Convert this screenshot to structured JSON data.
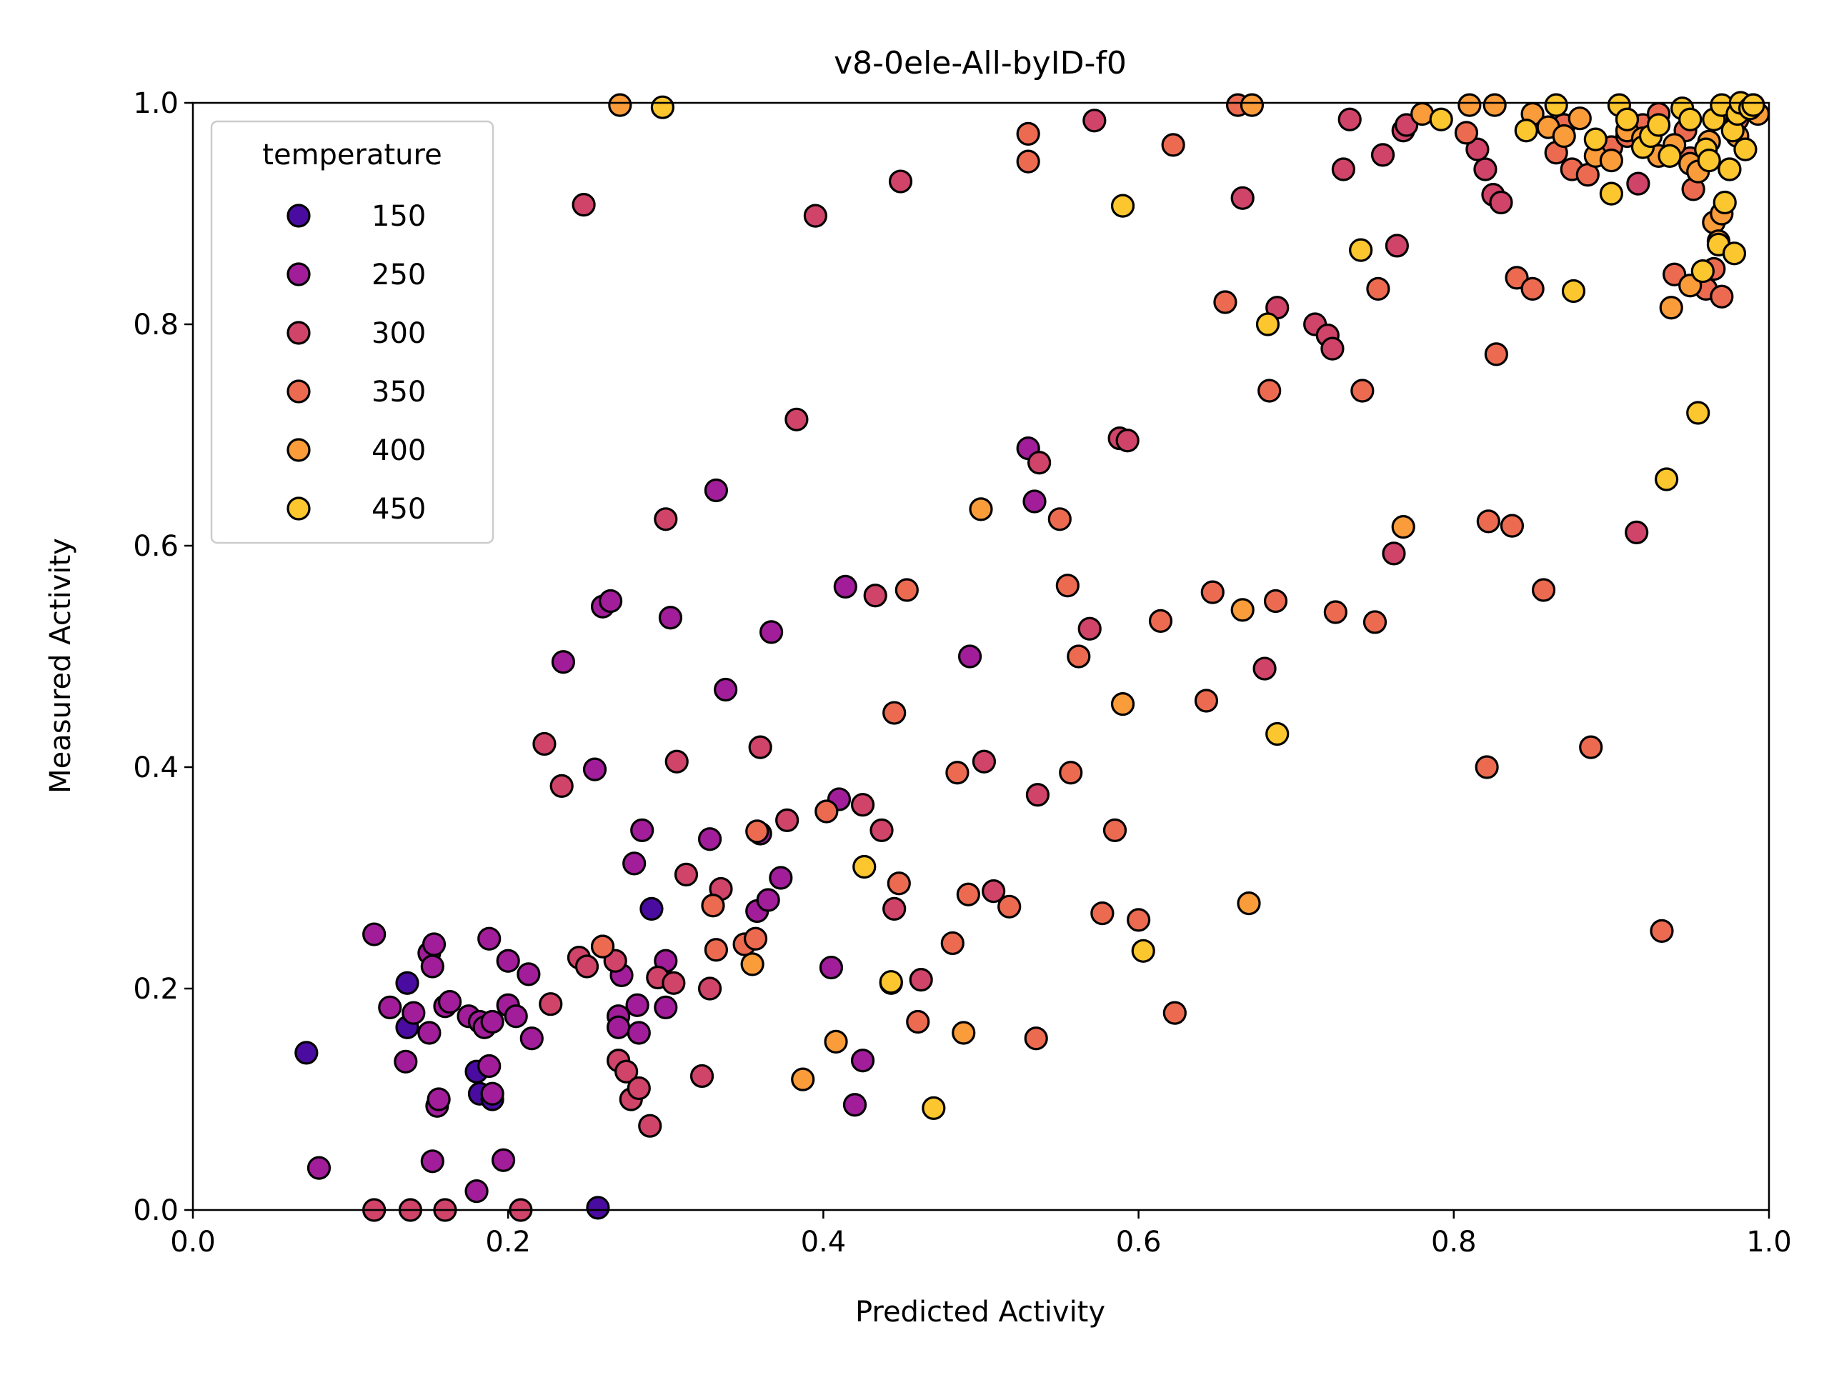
{
  "chart_data": {
    "type": "scatter",
    "title": "v8-0ele-All-byID-f0",
    "xlabel": "Predicted Activity",
    "ylabel": "Measured Activity",
    "xlim": [
      0.0,
      1.0
    ],
    "ylim": [
      0.0,
      1.0
    ],
    "xticks": [
      "0.0",
      "0.2",
      "0.4",
      "0.6",
      "0.8",
      "1.0"
    ],
    "yticks": [
      "0.0",
      "0.2",
      "0.4",
      "0.6",
      "0.8",
      "1.0"
    ],
    "grid": false,
    "legend": {
      "title": "temperature",
      "placement": "top-left",
      "entries": [
        {
          "label": "150",
          "color": "#4a0ca0"
        },
        {
          "label": "250",
          "color": "#a21d9a"
        },
        {
          "label": "300",
          "color": "#cf4468"
        },
        {
          "label": "350",
          "color": "#ec6b50"
        },
        {
          "label": "400",
          "color": "#fb9c3a"
        },
        {
          "label": "450",
          "color": "#fcc62e"
        }
      ]
    },
    "series": [
      {
        "name": "150",
        "color": "#4a0ca0",
        "points": [
          [
            0.072,
            0.142
          ],
          [
            0.136,
            0.205
          ],
          [
            0.136,
            0.165
          ],
          [
            0.18,
            0.125
          ],
          [
            0.182,
            0.105
          ],
          [
            0.19,
            0.1
          ],
          [
            0.291,
            0.272
          ],
          [
            0.257,
            0.002
          ]
        ]
      },
      {
        "name": "250",
        "color": "#a21d9a",
        "points": [
          [
            0.08,
            0.038
          ],
          [
            0.115,
            0.249
          ],
          [
            0.125,
            0.183
          ],
          [
            0.135,
            0.134
          ],
          [
            0.14,
            0.178
          ],
          [
            0.15,
            0.232
          ],
          [
            0.152,
            0.22
          ],
          [
            0.153,
            0.24
          ],
          [
            0.15,
            0.16
          ],
          [
            0.155,
            0.094
          ],
          [
            0.156,
            0.1
          ],
          [
            0.16,
            0.184
          ],
          [
            0.163,
            0.188
          ],
          [
            0.175,
            0.175
          ],
          [
            0.182,
            0.17
          ],
          [
            0.185,
            0.165
          ],
          [
            0.188,
            0.13
          ],
          [
            0.188,
            0.245
          ],
          [
            0.19,
            0.17
          ],
          [
            0.19,
            0.105
          ],
          [
            0.197,
            0.045
          ],
          [
            0.2,
            0.185
          ],
          [
            0.2,
            0.225
          ],
          [
            0.205,
            0.175
          ],
          [
            0.213,
            0.213
          ],
          [
            0.215,
            0.155
          ],
          [
            0.152,
            0.044
          ],
          [
            0.18,
            0.017
          ],
          [
            0.235,
            0.495
          ],
          [
            0.255,
            0.398
          ],
          [
            0.26,
            0.545
          ],
          [
            0.265,
            0.55
          ],
          [
            0.26,
            0.238
          ],
          [
            0.28,
            0.313
          ],
          [
            0.285,
            0.343
          ],
          [
            0.27,
            0.175
          ],
          [
            0.27,
            0.165
          ],
          [
            0.272,
            0.212
          ],
          [
            0.282,
            0.185
          ],
          [
            0.283,
            0.16
          ],
          [
            0.3,
            0.225
          ],
          [
            0.3,
            0.183
          ],
          [
            0.303,
            0.535
          ],
          [
            0.328,
            0.335
          ],
          [
            0.332,
            0.65
          ],
          [
            0.338,
            0.47
          ],
          [
            0.36,
            0.34
          ],
          [
            0.358,
            0.27
          ],
          [
            0.365,
            0.28
          ],
          [
            0.367,
            0.522
          ],
          [
            0.373,
            0.3
          ],
          [
            0.405,
            0.219
          ],
          [
            0.41,
            0.371
          ],
          [
            0.414,
            0.563
          ],
          [
            0.42,
            0.095
          ],
          [
            0.425,
            0.135
          ],
          [
            0.493,
            0.5
          ],
          [
            0.53,
            0.688
          ],
          [
            0.534,
            0.64
          ]
        ]
      },
      {
        "name": "300",
        "color": "#cf4468",
        "points": [
          [
            0.115,
            0.0
          ],
          [
            0.138,
            0.0
          ],
          [
            0.16,
            0.0
          ],
          [
            0.208,
            0.0
          ],
          [
            0.227,
            0.186
          ],
          [
            0.223,
            0.421
          ],
          [
            0.234,
            0.383
          ],
          [
            0.245,
            0.228
          ],
          [
            0.248,
            0.908
          ],
          [
            0.25,
            0.22
          ],
          [
            0.268,
            0.225
          ],
          [
            0.27,
            0.135
          ],
          [
            0.275,
            0.125
          ],
          [
            0.278,
            0.1
          ],
          [
            0.283,
            0.11
          ],
          [
            0.29,
            0.076
          ],
          [
            0.295,
            0.21
          ],
          [
            0.3,
            0.624
          ],
          [
            0.305,
            0.205
          ],
          [
            0.307,
            0.405
          ],
          [
            0.313,
            0.303
          ],
          [
            0.323,
            0.121
          ],
          [
            0.328,
            0.2
          ],
          [
            0.335,
            0.29
          ],
          [
            0.36,
            0.418
          ],
          [
            0.377,
            0.352
          ],
          [
            0.383,
            0.714
          ],
          [
            0.395,
            0.898
          ],
          [
            0.425,
            0.366
          ],
          [
            0.433,
            0.555
          ],
          [
            0.437,
            0.343
          ],
          [
            0.445,
            0.272
          ],
          [
            0.449,
            0.929
          ],
          [
            0.462,
            0.208
          ],
          [
            0.502,
            0.405
          ],
          [
            0.508,
            0.288
          ],
          [
            0.536,
            0.375
          ],
          [
            0.537,
            0.675
          ],
          [
            0.569,
            0.525
          ],
          [
            0.572,
            0.984
          ],
          [
            0.588,
            0.697
          ],
          [
            0.593,
            0.695
          ],
          [
            0.666,
            0.914
          ],
          [
            0.68,
            0.489
          ],
          [
            0.688,
            0.815
          ],
          [
            0.712,
            0.8
          ],
          [
            0.72,
            0.79
          ],
          [
            0.723,
            0.778
          ],
          [
            0.73,
            0.94
          ],
          [
            0.734,
            0.985
          ],
          [
            0.755,
            0.953
          ],
          [
            0.762,
            0.593
          ],
          [
            0.764,
            0.871
          ],
          [
            0.768,
            0.975
          ],
          [
            0.77,
            0.98
          ],
          [
            0.815,
            0.958
          ],
          [
            0.82,
            0.94
          ],
          [
            0.825,
            0.917
          ],
          [
            0.83,
            0.91
          ],
          [
            0.916,
            0.612
          ],
          [
            0.917,
            0.927
          ]
        ]
      },
      {
        "name": "350",
        "color": "#ec6b50",
        "points": [
          [
            0.26,
            0.238
          ],
          [
            0.33,
            0.275
          ],
          [
            0.332,
            0.235
          ],
          [
            0.35,
            0.24
          ],
          [
            0.357,
            0.245
          ],
          [
            0.358,
            0.342
          ],
          [
            0.402,
            0.36
          ],
          [
            0.445,
            0.449
          ],
          [
            0.448,
            0.295
          ],
          [
            0.453,
            0.56
          ],
          [
            0.46,
            0.17
          ],
          [
            0.482,
            0.241
          ],
          [
            0.485,
            0.395
          ],
          [
            0.492,
            0.285
          ],
          [
            0.518,
            0.274
          ],
          [
            0.53,
            0.947
          ],
          [
            0.53,
            0.972
          ],
          [
            0.535,
            0.155
          ],
          [
            0.55,
            0.624
          ],
          [
            0.555,
            0.564
          ],
          [
            0.557,
            0.395
          ],
          [
            0.562,
            0.5
          ],
          [
            0.577,
            0.268
          ],
          [
            0.585,
            0.343
          ],
          [
            0.6,
            0.262
          ],
          [
            0.614,
            0.532
          ],
          [
            0.622,
            0.962
          ],
          [
            0.623,
            0.178
          ],
          [
            0.643,
            0.46
          ],
          [
            0.647,
            0.558
          ],
          [
            0.655,
            0.82
          ],
          [
            0.663,
            0.998
          ],
          [
            0.683,
            0.74
          ],
          [
            0.687,
            0.55
          ],
          [
            0.725,
            0.54
          ],
          [
            0.742,
            0.74
          ],
          [
            0.75,
            0.531
          ],
          [
            0.752,
            0.832
          ],
          [
            0.808,
            0.973
          ],
          [
            0.822,
            0.622
          ],
          [
            0.821,
            0.4
          ],
          [
            0.827,
            0.773
          ],
          [
            0.837,
            0.618
          ],
          [
            0.84,
            0.842
          ],
          [
            0.85,
            0.832
          ],
          [
            0.857,
            0.56
          ],
          [
            0.865,
            0.955
          ],
          [
            0.87,
            0.98
          ],
          [
            0.875,
            0.94
          ],
          [
            0.885,
            0.935
          ],
          [
            0.887,
            0.418
          ],
          [
            0.932,
            0.252
          ],
          [
            0.947,
            0.975
          ],
          [
            0.95,
            0.95
          ],
          [
            0.952,
            0.922
          ],
          [
            0.96,
            0.832
          ],
          [
            0.965,
            0.85
          ],
          [
            0.97,
            0.825
          ],
          [
            0.9,
            0.96
          ],
          [
            0.91,
            0.97
          ],
          [
            0.92,
            0.98
          ],
          [
            0.93,
            0.99
          ],
          [
            0.94,
            0.845
          ],
          [
            0.97,
            0.99
          ],
          [
            0.975,
            0.985
          ],
          [
            0.98,
            0.985
          ],
          [
            0.985,
            0.995
          ]
        ]
      },
      {
        "name": "400",
        "color": "#fb9c3a",
        "points": [
          [
            0.271,
            0.998
          ],
          [
            0.355,
            0.222
          ],
          [
            0.387,
            0.118
          ],
          [
            0.408,
            0.152
          ],
          [
            0.443,
            0.205
          ],
          [
            0.489,
            0.16
          ],
          [
            0.5,
            0.633
          ],
          [
            0.59,
            0.457
          ],
          [
            0.666,
            0.542
          ],
          [
            0.67,
            0.277
          ],
          [
            0.672,
            0.998
          ],
          [
            0.768,
            0.617
          ],
          [
            0.78,
            0.99
          ],
          [
            0.81,
            0.998
          ],
          [
            0.826,
            0.998
          ],
          [
            0.85,
            0.99
          ],
          [
            0.86,
            0.978
          ],
          [
            0.87,
            0.97
          ],
          [
            0.88,
            0.986
          ],
          [
            0.89,
            0.952
          ],
          [
            0.9,
            0.948
          ],
          [
            0.91,
            0.975
          ],
          [
            0.92,
            0.968
          ],
          [
            0.93,
            0.952
          ],
          [
            0.94,
            0.962
          ],
          [
            0.95,
            0.945
          ],
          [
            0.955,
            0.938
          ],
          [
            0.962,
            0.965
          ],
          [
            0.965,
            0.892
          ],
          [
            0.968,
            0.875
          ],
          [
            0.97,
            0.9
          ],
          [
            0.975,
            0.94
          ],
          [
            0.98,
            0.97
          ],
          [
            0.985,
            0.995
          ],
          [
            0.99,
            0.998
          ],
          [
            0.993,
            0.99
          ],
          [
            0.938,
            0.815
          ],
          [
            0.95,
            0.835
          ]
        ]
      },
      {
        "name": "450",
        "color": "#fcc62e",
        "points": [
          [
            0.298,
            0.996
          ],
          [
            0.426,
            0.31
          ],
          [
            0.443,
            0.206
          ],
          [
            0.47,
            0.092
          ],
          [
            0.59,
            0.907
          ],
          [
            0.603,
            0.234
          ],
          [
            0.682,
            0.8
          ],
          [
            0.688,
            0.43
          ],
          [
            0.741,
            0.867
          ],
          [
            0.792,
            0.985
          ],
          [
            0.846,
            0.975
          ],
          [
            0.865,
            0.998
          ],
          [
            0.876,
            0.83
          ],
          [
            0.89,
            0.967
          ],
          [
            0.9,
            0.918
          ],
          [
            0.905,
            0.998
          ],
          [
            0.91,
            0.985
          ],
          [
            0.92,
            0.96
          ],
          [
            0.925,
            0.97
          ],
          [
            0.93,
            0.98
          ],
          [
            0.935,
            0.66
          ],
          [
            0.937,
            0.952
          ],
          [
            0.945,
            0.995
          ],
          [
            0.95,
            0.985
          ],
          [
            0.955,
            0.72
          ],
          [
            0.958,
            0.848
          ],
          [
            0.96,
            0.958
          ],
          [
            0.962,
            0.948
          ],
          [
            0.965,
            0.985
          ],
          [
            0.968,
            0.872
          ],
          [
            0.97,
            0.998
          ],
          [
            0.972,
            0.91
          ],
          [
            0.975,
            0.94
          ],
          [
            0.977,
            0.975
          ],
          [
            0.978,
            0.864
          ],
          [
            0.98,
            0.99
          ],
          [
            0.982,
            1.0
          ],
          [
            0.985,
            0.958
          ],
          [
            0.988,
            0.995
          ],
          [
            0.99,
            0.998
          ]
        ]
      }
    ]
  }
}
